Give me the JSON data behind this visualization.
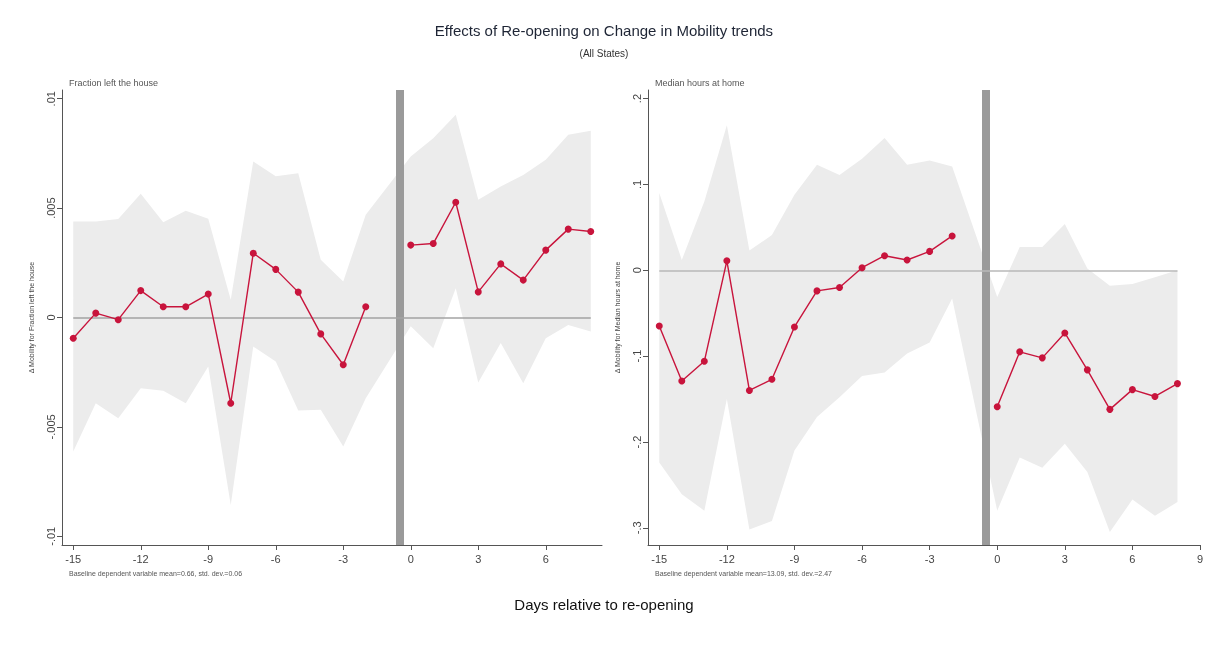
{
  "chart_data": [
    {
      "type": "line",
      "title": "Effects of Re-opening on Change in Mobility trends",
      "subtitle": "(All States)",
      "xlabel": "Days relative to re-opening",
      "ylabel": "Δ Mobility for Fraction left the house",
      "annotations": [
        "Fraction left the house",
        "Baseline dependent variable mean=0.66, std. dev.=0.06"
      ],
      "x": [
        -15,
        -14,
        -13,
        -12,
        -11,
        -10,
        -9,
        -8,
        -7,
        -6,
        -5,
        -4,
        -3,
        -2,
        -1,
        0,
        1,
        2,
        3,
        4,
        5,
        6,
        7,
        8
      ],
      "series": [
        {
          "color": "#c8143c",
          "values": [
            -0.00095,
            0.0002,
            -0.0001,
            0.00123,
            0.00049,
            0.00049,
            0.00107,
            -0.00392,
            0.00294,
            0.0022,
            0.00116,
            -0.00075,
            -0.00216,
            0.00049,
            null,
            0.00331,
            0.00338,
            0.00527,
            0.00117,
            0.00245,
            0.00171,
            0.00308,
            0.00404,
            0.00393
          ],
          "upper": [
            0.00439,
            0.00439,
            0.0045,
            0.00566,
            0.00436,
            0.00488,
            0.00451,
            0.00081,
            0.00713,
            0.00646,
            0.00659,
            0.00264,
            0.00165,
            0.0047,
            null,
            0.00736,
            0.0082,
            0.00927,
            0.00538,
            0.00599,
            0.00652,
            0.00721,
            0.00835,
            0.00854
          ],
          "lower": [
            -0.00613,
            -0.00392,
            -0.0046,
            -0.00323,
            -0.00335,
            -0.00392,
            -0.00224,
            -0.00857,
            -0.00133,
            -0.00201,
            -0.00425,
            -0.00422,
            -0.0059,
            -0.00369,
            null,
            -0.0004,
            -0.0014,
            0.00134,
            -0.00297,
            -0.00117,
            -0.003,
            -0.00095,
            -0.00034,
            -0.00064
          ]
        }
      ],
      "xlim": [
        -15.5,
        8.5
      ],
      "xticks": [
        -15,
        -12,
        -9,
        -6,
        -3,
        0,
        3,
        6
      ],
      "ylim": [
        -0.0104,
        0.0104
      ],
      "yticks": [
        {
          "value": -0.01,
          "label": "-.01"
        },
        {
          "value": -0.005,
          "label": "-.005"
        },
        {
          "value": 0,
          "label": "0"
        },
        {
          "value": 0.005,
          "label": ".005"
        },
        {
          "value": 0.01,
          "label": ".01"
        }
      ],
      "ref_lines": [
        {
          "axis": "x",
          "value": -0.5,
          "color": "#9a9a9a"
        },
        {
          "axis": "y",
          "value": 0,
          "color": "#a3a3a3"
        }
      ],
      "marker": "circle",
      "line_style": "solid",
      "grid": false
    },
    {
      "type": "line",
      "ylabel": "Δ Mobility for Median hours at home",
      "annotations": [
        "Median hours at home",
        "Baseline dependent variable mean=13.09, std. dev.=2.47"
      ],
      "x": [
        -15,
        -14,
        -13,
        -12,
        -11,
        -10,
        -9,
        -8,
        -7,
        -6,
        -5,
        -4,
        -3,
        -2,
        -1,
        0,
        1,
        2,
        3,
        4,
        5,
        6,
        7,
        8
      ],
      "series": [
        {
          "color": "#c8143c",
          "values": [
            -0.065,
            -0.129,
            -0.106,
            0.011,
            -0.14,
            -0.127,
            -0.066,
            -0.024,
            -0.02,
            0.003,
            0.017,
            0.012,
            0.022,
            0.04,
            null,
            -0.159,
            -0.095,
            -0.102,
            -0.073,
            -0.116,
            -0.162,
            -0.139,
            -0.147,
            -0.132
          ],
          "upper": [
            0.09,
            0.012,
            0.08,
            0.169,
            0.023,
            0.041,
            0.088,
            0.123,
            0.111,
            0.13,
            0.154,
            0.123,
            0.128,
            0.121,
            null,
            -0.031,
            0.027,
            0.027,
            0.054,
            0.002,
            -0.018,
            -0.016,
            -0.008,
            0
          ],
          "lower": [
            -0.224,
            -0.261,
            -0.28,
            -0.15,
            -0.302,
            -0.292,
            -0.21,
            -0.171,
            -0.148,
            -0.123,
            -0.119,
            -0.097,
            -0.084,
            -0.033,
            null,
            -0.28,
            -0.218,
            -0.23,
            -0.202,
            -0.235,
            -0.305,
            -0.267,
            -0.286,
            -0.27
          ]
        }
      ],
      "xlim": [
        -15.5,
        9
      ],
      "xticks": [
        -15,
        -12,
        -9,
        -6,
        -3,
        0,
        3,
        6,
        9
      ],
      "ylim": [
        -0.32,
        0.21
      ],
      "yticks": [
        {
          "value": -0.3,
          "label": "-.3"
        },
        {
          "value": -0.2,
          "label": "-.2"
        },
        {
          "value": -0.1,
          "label": "-.1"
        },
        {
          "value": 0,
          "label": "0"
        },
        {
          "value": 0.1,
          "label": ".1"
        },
        {
          "value": 0.2,
          "label": ".2"
        }
      ],
      "ref_lines": [
        {
          "axis": "x",
          "value": -0.5,
          "color": "#9a9a9a"
        },
        {
          "axis": "y",
          "value": 0,
          "color": "#b8b8b8"
        }
      ],
      "marker": "circle",
      "line_style": "solid",
      "grid": false
    }
  ]
}
